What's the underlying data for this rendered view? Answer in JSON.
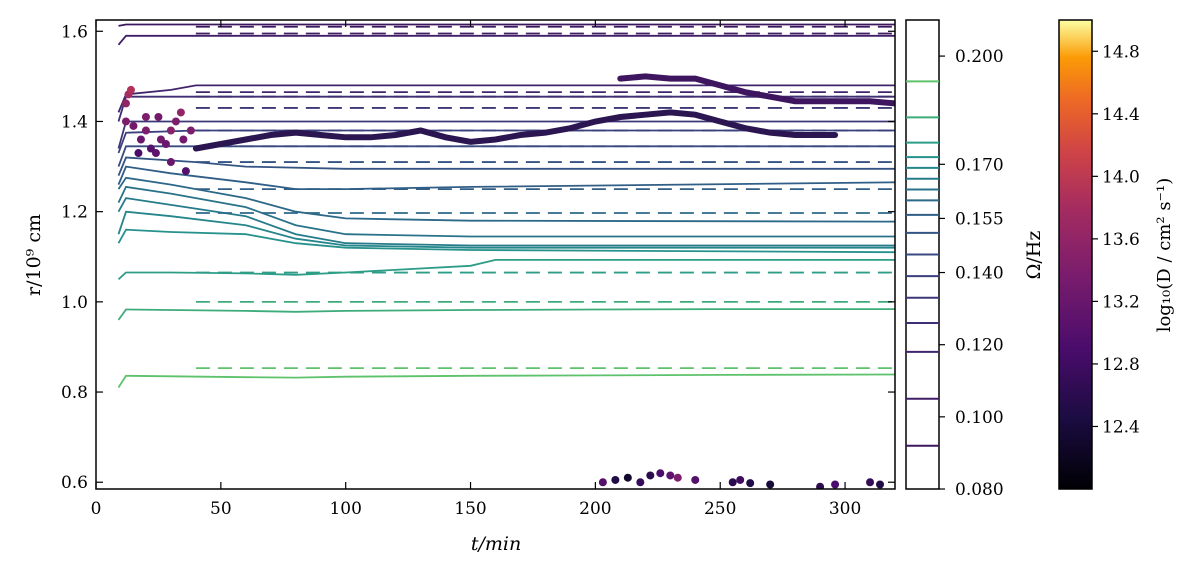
{
  "chart_data": {
    "type": "line",
    "xlabel": "t/min",
    "ylabel": "r/10⁹ cm",
    "xlim": [
      0,
      320
    ],
    "ylim": [
      0.585,
      1.625
    ],
    "xticks": [
      "0",
      "50",
      "100",
      "150",
      "200",
      "250",
      "300"
    ],
    "xtick_values": [
      0,
      50,
      100,
      150,
      200,
      250,
      300
    ],
    "yticks": [
      "0.6",
      "0.8",
      "1.0",
      "1.2",
      "1.4",
      "1.6"
    ],
    "ytick_values": [
      0.6,
      0.8,
      1.0,
      1.2,
      1.4,
      1.6
    ],
    "grid": false,
    "series": [
      {
        "omega": 0.193,
        "color": "#5dc26b",
        "x": [
          9,
          12,
          30,
          60,
          80,
          100,
          150,
          200,
          250,
          320
        ],
        "y": [
          0.81,
          0.836,
          0.835,
          0.833,
          0.832,
          0.834,
          0.836,
          0.837,
          0.838,
          0.839
        ],
        "solid_final": 0.839,
        "dashed_final": 0.853
      },
      {
        "omega": 0.183,
        "color": "#3dab7a",
        "x": [
          9,
          12,
          30,
          60,
          80,
          100,
          150,
          200,
          250,
          320
        ],
        "y": [
          0.96,
          0.983,
          0.982,
          0.98,
          0.978,
          0.98,
          0.982,
          0.983,
          0.984,
          0.984
        ],
        "solid_final": 0.984,
        "dashed_final": 1.0
      },
      {
        "omega": 0.176,
        "color": "#2d9d87",
        "x": [
          9,
          12,
          30,
          60,
          80,
          100,
          150,
          160,
          200,
          320
        ],
        "y": [
          1.05,
          1.065,
          1.065,
          1.063,
          1.06,
          1.065,
          1.08,
          1.093,
          1.093,
          1.093
        ],
        "solid_final": 1.093,
        "dashed_final": 1.065
      },
      {
        "omega": 0.172,
        "color": "#27918c",
        "x": [
          9,
          12,
          30,
          60,
          80,
          100,
          150,
          320
        ],
        "y": [
          1.13,
          1.16,
          1.155,
          1.15,
          1.13,
          1.12,
          1.115,
          1.11
        ],
        "solid_final": 1.11
      },
      {
        "omega": 0.169,
        "color": "#25868b",
        "x": [
          9,
          12,
          30,
          60,
          80,
          100,
          150,
          320
        ],
        "y": [
          1.15,
          1.2,
          1.19,
          1.17,
          1.14,
          1.125,
          1.12,
          1.12
        ],
        "solid_final": 1.12
      },
      {
        "omega": 0.166,
        "color": "#267b8a",
        "x": [
          9,
          12,
          30,
          60,
          80,
          100,
          150,
          320
        ],
        "y": [
          1.2,
          1.23,
          1.215,
          1.19,
          1.15,
          1.13,
          1.125,
          1.125
        ],
        "solid_final": 1.125
      },
      {
        "omega": 0.163,
        "color": "#297289",
        "x": [
          9,
          12,
          30,
          60,
          80,
          100,
          150,
          320
        ],
        "y": [
          1.22,
          1.255,
          1.24,
          1.21,
          1.17,
          1.15,
          1.145,
          1.145
        ],
        "solid_final": 1.145
      },
      {
        "omega": 0.16,
        "color": "#2c6888",
        "x": [
          9,
          12,
          30,
          60,
          80,
          100,
          150,
          320
        ],
        "y": [
          1.25,
          1.275,
          1.26,
          1.23,
          1.2,
          1.185,
          1.18,
          1.178
        ],
        "solid_final": 1.178,
        "dashed_final": 1.197
      },
      {
        "omega": 0.156,
        "color": "#305e86",
        "x": [
          9,
          12,
          30,
          60,
          80,
          100,
          150,
          320
        ],
        "y": [
          1.26,
          1.3,
          1.285,
          1.265,
          1.25,
          1.25,
          1.255,
          1.265
        ],
        "solid_final": 1.265,
        "dashed_final": 1.25
      },
      {
        "omega": 0.151,
        "color": "#345483",
        "x": [
          9,
          12,
          40,
          60,
          100,
          150,
          320
        ],
        "y": [
          1.28,
          1.32,
          1.31,
          1.3,
          1.295,
          1.295,
          1.295
        ],
        "solid_final": 1.295,
        "dashed_final": 1.31
      },
      {
        "omega": 0.145,
        "color": "#384a80",
        "x": [
          9,
          12,
          40,
          60,
          100,
          150,
          320
        ],
        "y": [
          1.3,
          1.345,
          1.345,
          1.345,
          1.345,
          1.345,
          1.345
        ],
        "solid_final": 1.345,
        "dashed_final": 1.345
      },
      {
        "omega": 0.139,
        "color": "#3b407c",
        "x": [
          9,
          12,
          40,
          60,
          100,
          150,
          320
        ],
        "y": [
          1.33,
          1.375,
          1.38,
          1.38,
          1.38,
          1.38,
          1.38
        ],
        "solid_final": 1.38,
        "dashed_final": 1.38
      },
      {
        "omega": 0.133,
        "color": "#3d3778",
        "x": [
          9,
          12,
          40,
          60,
          100,
          150,
          320
        ],
        "y": [
          1.34,
          1.4,
          1.4,
          1.4,
          1.4,
          1.4,
          1.4
        ],
        "solid_final": 1.4,
        "dashed_final": 1.43
      },
      {
        "omega": 0.126,
        "color": "#3f2e73",
        "x": [
          9,
          12,
          40,
          60,
          100,
          150,
          320
        ],
        "y": [
          1.4,
          1.455,
          1.455,
          1.455,
          1.455,
          1.455,
          1.455
        ],
        "solid_final": 1.455,
        "dashed_final": 1.455
      },
      {
        "omega": 0.118,
        "color": "#40256d",
        "x": [
          9,
          12,
          30,
          40,
          60,
          100,
          150,
          320
        ],
        "y": [
          1.42,
          1.46,
          1.47,
          1.48,
          1.48,
          1.48,
          1.48,
          1.48
        ],
        "solid_final": 1.48,
        "dashed_final": 1.465
      },
      {
        "omega": 0.105,
        "color": "#401e66",
        "x": [
          9,
          12,
          30,
          60,
          100,
          150,
          320
        ],
        "y": [
          1.57,
          1.59,
          1.59,
          1.59,
          1.59,
          1.59,
          1.59
        ],
        "solid_final": 1.59,
        "dashed_final": 1.595
      },
      {
        "omega": 0.092,
        "color": "#3c175e",
        "x": [
          9,
          12,
          30,
          60,
          100,
          150,
          320
        ],
        "y": [
          1.612,
          1.615,
          1.615,
          1.615,
          1.615,
          1.615,
          1.615
        ],
        "solid_final": 1.615,
        "dashed_final": 1.61
      }
    ],
    "thick_tracks": [
      {
        "color": "#2c1652",
        "x": [
          40,
          50,
          60,
          70,
          80,
          90,
          100,
          110,
          120,
          130,
          140,
          150,
          160,
          170,
          180,
          190,
          200,
          210,
          220,
          230,
          240,
          250,
          260,
          270,
          280,
          296
        ],
        "y": [
          1.34,
          1.35,
          1.36,
          1.37,
          1.375,
          1.37,
          1.365,
          1.365,
          1.37,
          1.38,
          1.365,
          1.355,
          1.36,
          1.37,
          1.375,
          1.385,
          1.4,
          1.41,
          1.415,
          1.42,
          1.415,
          1.4,
          1.385,
          1.375,
          1.37,
          1.37
        ]
      },
      {
        "color": "#3e1660",
        "x": [
          210,
          220,
          230,
          240,
          250,
          260,
          270,
          280,
          290,
          300,
          310,
          320
        ],
        "y": [
          1.495,
          1.5,
          1.495,
          1.495,
          1.48,
          1.465,
          1.455,
          1.445,
          1.445,
          1.445,
          1.445,
          1.44
        ]
      }
    ],
    "scatter": [
      {
        "x": 12,
        "y": 1.44,
        "logD": 13.6
      },
      {
        "x": 13,
        "y": 1.46,
        "logD": 13.8
      },
      {
        "x": 14,
        "y": 1.47,
        "logD": 13.9
      },
      {
        "x": 12,
        "y": 1.4,
        "logD": 13.4
      },
      {
        "x": 15,
        "y": 1.39,
        "logD": 13.3
      },
      {
        "x": 18,
        "y": 1.36,
        "logD": 13.2
      },
      {
        "x": 20,
        "y": 1.38,
        "logD": 13.4
      },
      {
        "x": 22,
        "y": 1.34,
        "logD": 13.0
      },
      {
        "x": 24,
        "y": 1.33,
        "logD": 13.1
      },
      {
        "x": 26,
        "y": 1.36,
        "logD": 13.3
      },
      {
        "x": 28,
        "y": 1.35,
        "logD": 13.2
      },
      {
        "x": 30,
        "y": 1.38,
        "logD": 13.5
      },
      {
        "x": 32,
        "y": 1.4,
        "logD": 13.4
      },
      {
        "x": 34,
        "y": 1.42,
        "logD": 13.6
      },
      {
        "x": 30,
        "y": 1.31,
        "logD": 13.2
      },
      {
        "x": 35,
        "y": 1.36,
        "logD": 13.3
      },
      {
        "x": 38,
        "y": 1.38,
        "logD": 13.4
      },
      {
        "x": 25,
        "y": 1.41,
        "logD": 13.3
      },
      {
        "x": 20,
        "y": 1.41,
        "logD": 13.4
      },
      {
        "x": 17,
        "y": 1.33,
        "logD": 12.9
      },
      {
        "x": 36,
        "y": 1.29,
        "logD": 13.0
      },
      {
        "x": 203,
        "y": 0.6,
        "logD": 13.0
      },
      {
        "x": 208,
        "y": 0.605,
        "logD": 12.5
      },
      {
        "x": 213,
        "y": 0.61,
        "logD": 12.3
      },
      {
        "x": 218,
        "y": 0.6,
        "logD": 12.7
      },
      {
        "x": 222,
        "y": 0.615,
        "logD": 12.6
      },
      {
        "x": 226,
        "y": 0.62,
        "logD": 12.9
      },
      {
        "x": 230,
        "y": 0.615,
        "logD": 13.1
      },
      {
        "x": 233,
        "y": 0.61,
        "logD": 13.4
      },
      {
        "x": 240,
        "y": 0.605,
        "logD": 13.0
      },
      {
        "x": 255,
        "y": 0.6,
        "logD": 12.6
      },
      {
        "x": 258,
        "y": 0.605,
        "logD": 12.8
      },
      {
        "x": 262,
        "y": 0.598,
        "logD": 12.5
      },
      {
        "x": 270,
        "y": 0.595,
        "logD": 12.4
      },
      {
        "x": 290,
        "y": 0.59,
        "logD": 12.6
      },
      {
        "x": 296,
        "y": 0.595,
        "logD": 12.9
      },
      {
        "x": 310,
        "y": 0.6,
        "logD": 12.7
      },
      {
        "x": 314,
        "y": 0.595,
        "logD": 12.5
      }
    ],
    "colorbar_omega": {
      "label": "Ω/Hz",
      "ticks": [
        "0.200",
        "0.170",
        "0.155",
        "0.140",
        "0.120",
        "0.100",
        "0.080"
      ],
      "tick_values": [
        0.2,
        0.17,
        0.155,
        0.14,
        0.12,
        0.1,
        0.08
      ],
      "range": [
        0.08,
        0.21
      ]
    },
    "colorbar_D": {
      "label": "log₁₀(D / cm² s⁻¹)",
      "ticks": [
        "14.8",
        "14.4",
        "14.0",
        "13.6",
        "13.2",
        "12.8",
        "12.4"
      ],
      "tick_values": [
        14.8,
        14.4,
        14.0,
        13.6,
        13.2,
        12.8,
        12.4
      ],
      "range": [
        12.0,
        15.0
      ]
    }
  }
}
